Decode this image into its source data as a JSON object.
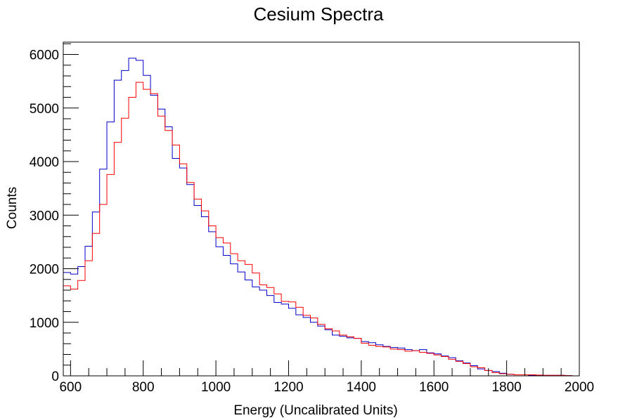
{
  "chart_data": {
    "type": "histogram",
    "title": "Cesium Spectra",
    "xlabel": "Energy (Uncalibrated Units)",
    "ylabel": "Counts",
    "xlim": [
      580,
      2000
    ],
    "ylim": [
      0,
      6230
    ],
    "x_ticks": [
      600,
      800,
      1000,
      1200,
      1400,
      1600,
      1800,
      2000
    ],
    "y_ticks": [
      0,
      1000,
      2000,
      3000,
      4000,
      5000,
      6000
    ],
    "bin_edges": [
      580,
      600,
      620,
      640,
      660,
      680,
      700,
      720,
      740,
      760,
      780,
      800,
      820,
      840,
      860,
      880,
      900,
      920,
      940,
      960,
      980,
      1000,
      1020,
      1040,
      1060,
      1080,
      1100,
      1120,
      1140,
      1160,
      1180,
      1200,
      1220,
      1240,
      1260,
      1280,
      1300,
      1320,
      1340,
      1360,
      1380,
      1400,
      1420,
      1440,
      1460,
      1480,
      1500,
      1520,
      1540,
      1560,
      1580,
      1600,
      1620,
      1640,
      1660,
      1680,
      1700,
      1720,
      1740,
      1760,
      1780,
      1800,
      1820,
      1840,
      1860,
      1880,
      1900,
      1920,
      1940,
      1960,
      1980,
      2000
    ],
    "grid": false,
    "series": [
      {
        "color": "#0000cc",
        "values": [
          1930,
          1900,
          2040,
          2420,
          3060,
          3860,
          4740,
          5520,
          5700,
          5930,
          5890,
          5610,
          5240,
          4980,
          4650,
          4060,
          3880,
          3570,
          3180,
          2970,
          2690,
          2410,
          2250,
          2090,
          1940,
          1790,
          1660,
          1600,
          1500,
          1370,
          1340,
          1260,
          1140,
          1090,
          1000,
          930,
          860,
          760,
          740,
          710,
          700,
          640,
          620,
          580,
          550,
          530,
          520,
          490,
          470,
          490,
          430,
          410,
          370,
          340,
          280,
          240,
          190,
          130,
          100,
          80,
          50,
          30,
          20,
          20,
          10,
          10,
          10,
          10,
          10,
          5,
          0
        ]
      },
      {
        "color": "#ff0000",
        "values": [
          1680,
          1620,
          1780,
          2150,
          2660,
          3200,
          3760,
          4360,
          4810,
          5200,
          5480,
          5350,
          5270,
          4850,
          4580,
          4310,
          3960,
          3610,
          3300,
          3080,
          2800,
          2580,
          2480,
          2280,
          2150,
          2080,
          1920,
          1700,
          1650,
          1530,
          1390,
          1380,
          1280,
          1130,
          1080,
          960,
          880,
          840,
          760,
          730,
          700,
          610,
          570,
          550,
          540,
          500,
          490,
          460,
          470,
          440,
          420,
          390,
          360,
          310,
          270,
          230,
          170,
          150,
          100,
          60,
          40,
          30,
          20,
          20,
          20,
          15,
          10,
          10,
          10,
          5,
          0
        ]
      }
    ]
  }
}
